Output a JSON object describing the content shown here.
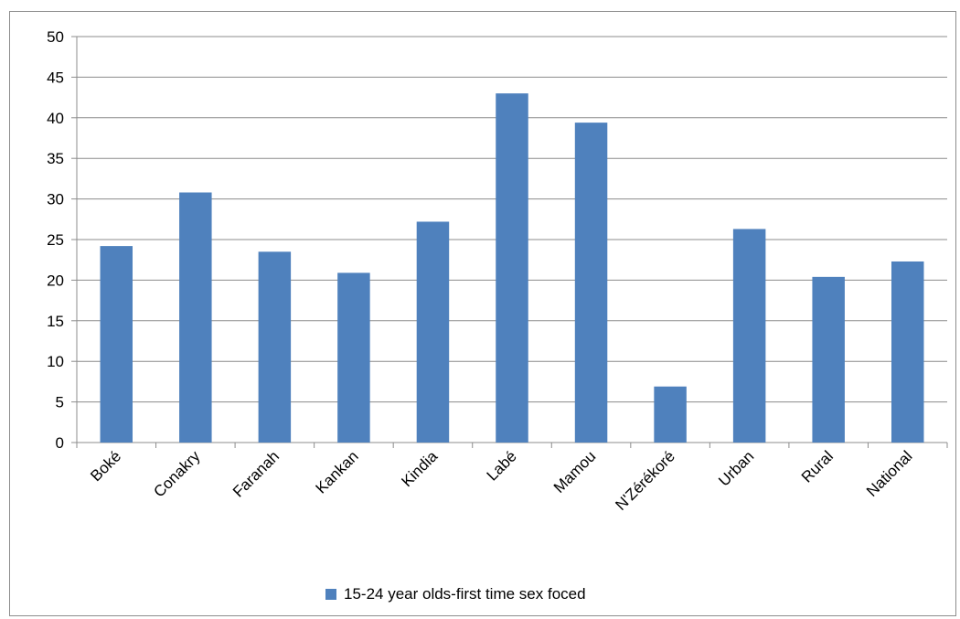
{
  "chart_data": {
    "type": "bar",
    "title": "",
    "xlabel": "",
    "ylabel": "",
    "ylim": [
      0,
      50
    ],
    "yticks": [
      0,
      5,
      10,
      15,
      20,
      25,
      30,
      35,
      40,
      45,
      50
    ],
    "grid": true,
    "legend_position": "bottom",
    "categories": [
      "Boké",
      "Conakry",
      "Faranah",
      "Kankan",
      "Kindia",
      "Labé",
      "Mamou",
      "N'Zérékoré",
      "Urban",
      "Rural",
      "National"
    ],
    "series": [
      {
        "name": "15-24 year olds-first time sex foced",
        "color": "#4f81bd",
        "values": [
          24.2,
          30.8,
          23.5,
          20.9,
          27.2,
          43.0,
          39.4,
          6.9,
          26.3,
          20.4,
          22.3
        ]
      }
    ]
  }
}
